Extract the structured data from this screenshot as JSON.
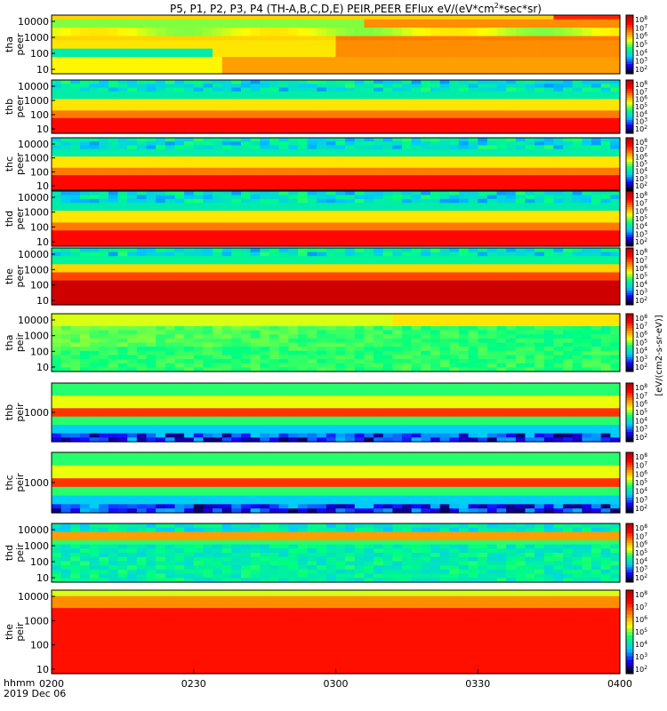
{
  "chart_data": {
    "type": "heatmap",
    "title": "P5, P1, P2, P3, P4 (TH-A,B,C,D,E) PEIR,PEER EFlux eV/(eV*cm",
    "title_superscript": "2",
    "title_suffix": "*sec*sr)",
    "x_axis": {
      "tick_labels": [
        "0200",
        "0230",
        "0300",
        "0330",
        "0400"
      ],
      "range": [
        "0200",
        "0400"
      ],
      "label_line1": "hhmm",
      "label_line2": "2019 Dec 06"
    },
    "colorbar": {
      "tick_labels": [
        "10",
        "10",
        "10",
        "10",
        "10",
        "10",
        "10"
      ],
      "tick_exponents": [
        "8",
        "7",
        "6",
        "5",
        "4",
        "3",
        "2"
      ],
      "scale": "log",
      "label": "[eV/(cm2-s-sr-eV)]",
      "colormap": [
        "#000000",
        "#1a00ff",
        "#00c8ff",
        "#00ff80",
        "#ffff00",
        "#ff8000",
        "#ff0000",
        "#b40000"
      ]
    },
    "panels": [
      {
        "name1": "tha",
        "name2": "peer",
        "y_ticks": [
          "10000",
          "1000",
          "100",
          "10"
        ],
        "scale": "log",
        "profile": "tha_peer"
      },
      {
        "name1": "thb",
        "name2": "peer",
        "y_ticks": [
          "10000",
          "1000",
          "100",
          "10"
        ],
        "scale": "log",
        "profile": "peer"
      },
      {
        "name1": "thc",
        "name2": "peer",
        "y_ticks": [
          "10000",
          "1000",
          "100",
          "10"
        ],
        "scale": "log",
        "profile": "peer"
      },
      {
        "name1": "thd",
        "name2": "peer",
        "y_ticks": [
          "10000",
          "1000",
          "100",
          "10"
        ],
        "scale": "log",
        "profile": "peer"
      },
      {
        "name1": "the",
        "name2": "peer",
        "y_ticks": [
          "10000",
          "1000",
          "100",
          "10"
        ],
        "scale": "log",
        "profile": "the_peer"
      },
      {
        "name1": "tha",
        "name2": "peir",
        "y_ticks": [
          "10000",
          "1000",
          "100",
          "10"
        ],
        "scale": "log",
        "profile": "tha_peir"
      },
      {
        "name1": "thb",
        "name2": "peir",
        "y_ticks": [
          "1000"
        ],
        "scale": "log",
        "profile": "peir_band"
      },
      {
        "name1": "thc",
        "name2": "peir",
        "y_ticks": [
          "1000"
        ],
        "scale": "log",
        "profile": "peir_band"
      },
      {
        "name1": "thd",
        "name2": "peir",
        "y_ticks": [
          "10000",
          "1000",
          "100",
          "10"
        ],
        "scale": "log",
        "profile": "thd_peir"
      },
      {
        "name1": "the",
        "name2": "peir",
        "y_ticks": [
          "10000",
          "1000",
          "100",
          "10"
        ],
        "scale": "log",
        "profile": "the_peir"
      }
    ]
  }
}
